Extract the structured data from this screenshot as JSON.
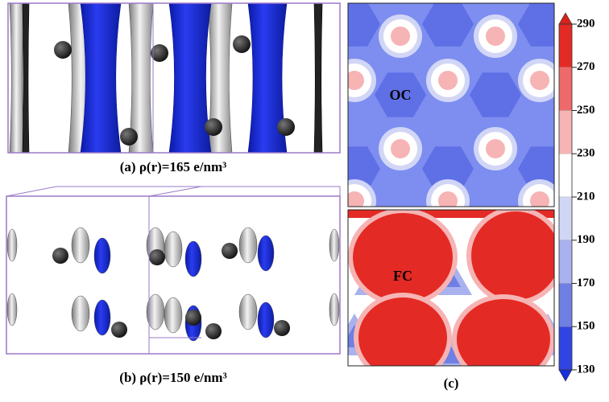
{
  "panel_a": {
    "caption": "(a) ρ(r)=165 e/nm³"
  },
  "panel_b": {
    "caption": "(b) ρ(r)=150 e/nm³"
  },
  "panel_c": {
    "caption": "(c)",
    "top_label": "OC",
    "bottom_label": "FC"
  },
  "colorbar": {
    "ticks": [
      290,
      270,
      250,
      230,
      210,
      190,
      170,
      150,
      130
    ],
    "colors": [
      "#e42a24",
      "#ee6a6a",
      "#f6b4b4",
      "#ffffff",
      "#d2d6f6",
      "#a9b1ee",
      "#6f7fe4",
      "#3044e2"
    ],
    "over_color": "#d8201c",
    "under_color": "#1a2ee0"
  }
}
